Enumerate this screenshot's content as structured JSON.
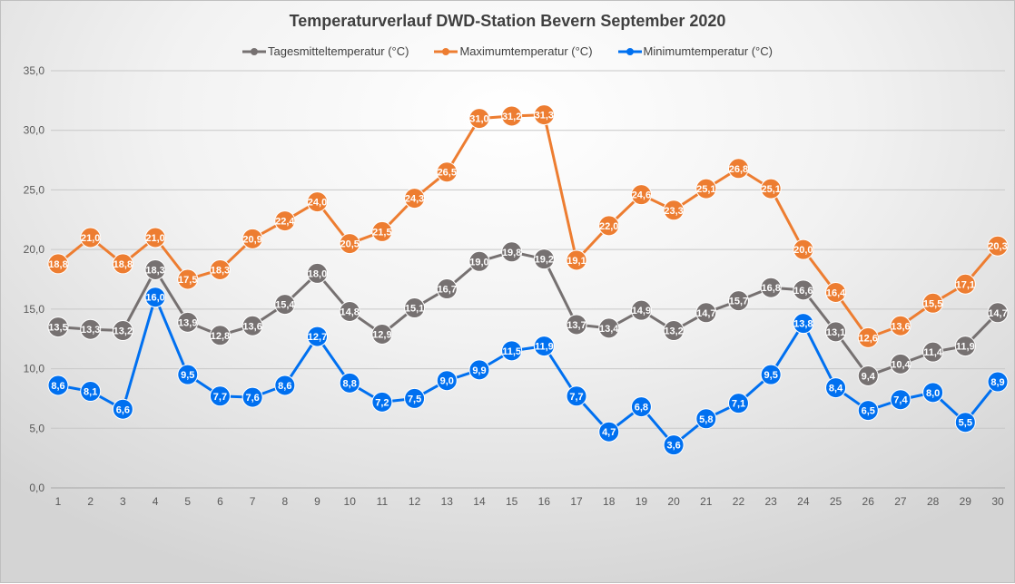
{
  "chart_data": {
    "type": "line",
    "title": "Temperaturverlauf  DWD-Station  Bevern September 2020",
    "xlabel": "",
    "ylabel": "",
    "ylim": [
      0,
      35
    ],
    "yticks": [
      "0,0",
      "5,0",
      "10,0",
      "15,0",
      "20,0",
      "25,0",
      "30,0",
      "35,0"
    ],
    "x": [
      1,
      2,
      3,
      4,
      5,
      6,
      7,
      8,
      9,
      10,
      11,
      12,
      13,
      14,
      15,
      16,
      17,
      18,
      19,
      20,
      21,
      22,
      23,
      24,
      25,
      26,
      27,
      28,
      29,
      30
    ],
    "legend_position": "top",
    "grid": true,
    "series": [
      {
        "name": "Tagesmitteltemperatur (°C)",
        "color": "#767171",
        "values": [
          13.5,
          13.3,
          13.2,
          18.3,
          13.9,
          12.8,
          13.6,
          15.4,
          18.0,
          14.8,
          12.9,
          15.1,
          16.7,
          19.0,
          19.8,
          19.2,
          13.7,
          13.4,
          14.9,
          13.2,
          14.7,
          15.7,
          16.8,
          16.6,
          13.1,
          9.4,
          10.4,
          11.4,
          11.9,
          14.7
        ]
      },
      {
        "name": "Maximumtemperatur (°C)",
        "color": "#ed7d31",
        "values": [
          18.8,
          21.0,
          18.8,
          21.0,
          17.5,
          18.3,
          20.9,
          22.4,
          24.0,
          20.5,
          21.5,
          24.3,
          26.5,
          31.0,
          31.2,
          31.3,
          19.1,
          22.0,
          24.6,
          23.3,
          25.1,
          26.8,
          25.1,
          20.0,
          16.4,
          12.6,
          13.6,
          15.5,
          17.1,
          20.3
        ]
      },
      {
        "name": "Minimumtemperatur (°C)",
        "color": "#0070f0",
        "values": [
          8.6,
          8.1,
          6.6,
          16.0,
          9.5,
          7.7,
          7.6,
          8.6,
          12.7,
          8.8,
          7.2,
          7.5,
          9.0,
          9.9,
          11.5,
          11.9,
          7.7,
          4.7,
          6.8,
          3.6,
          5.8,
          7.1,
          9.5,
          13.8,
          8.4,
          6.5,
          7.4,
          8.0,
          5.5,
          8.9
        ]
      }
    ]
  }
}
